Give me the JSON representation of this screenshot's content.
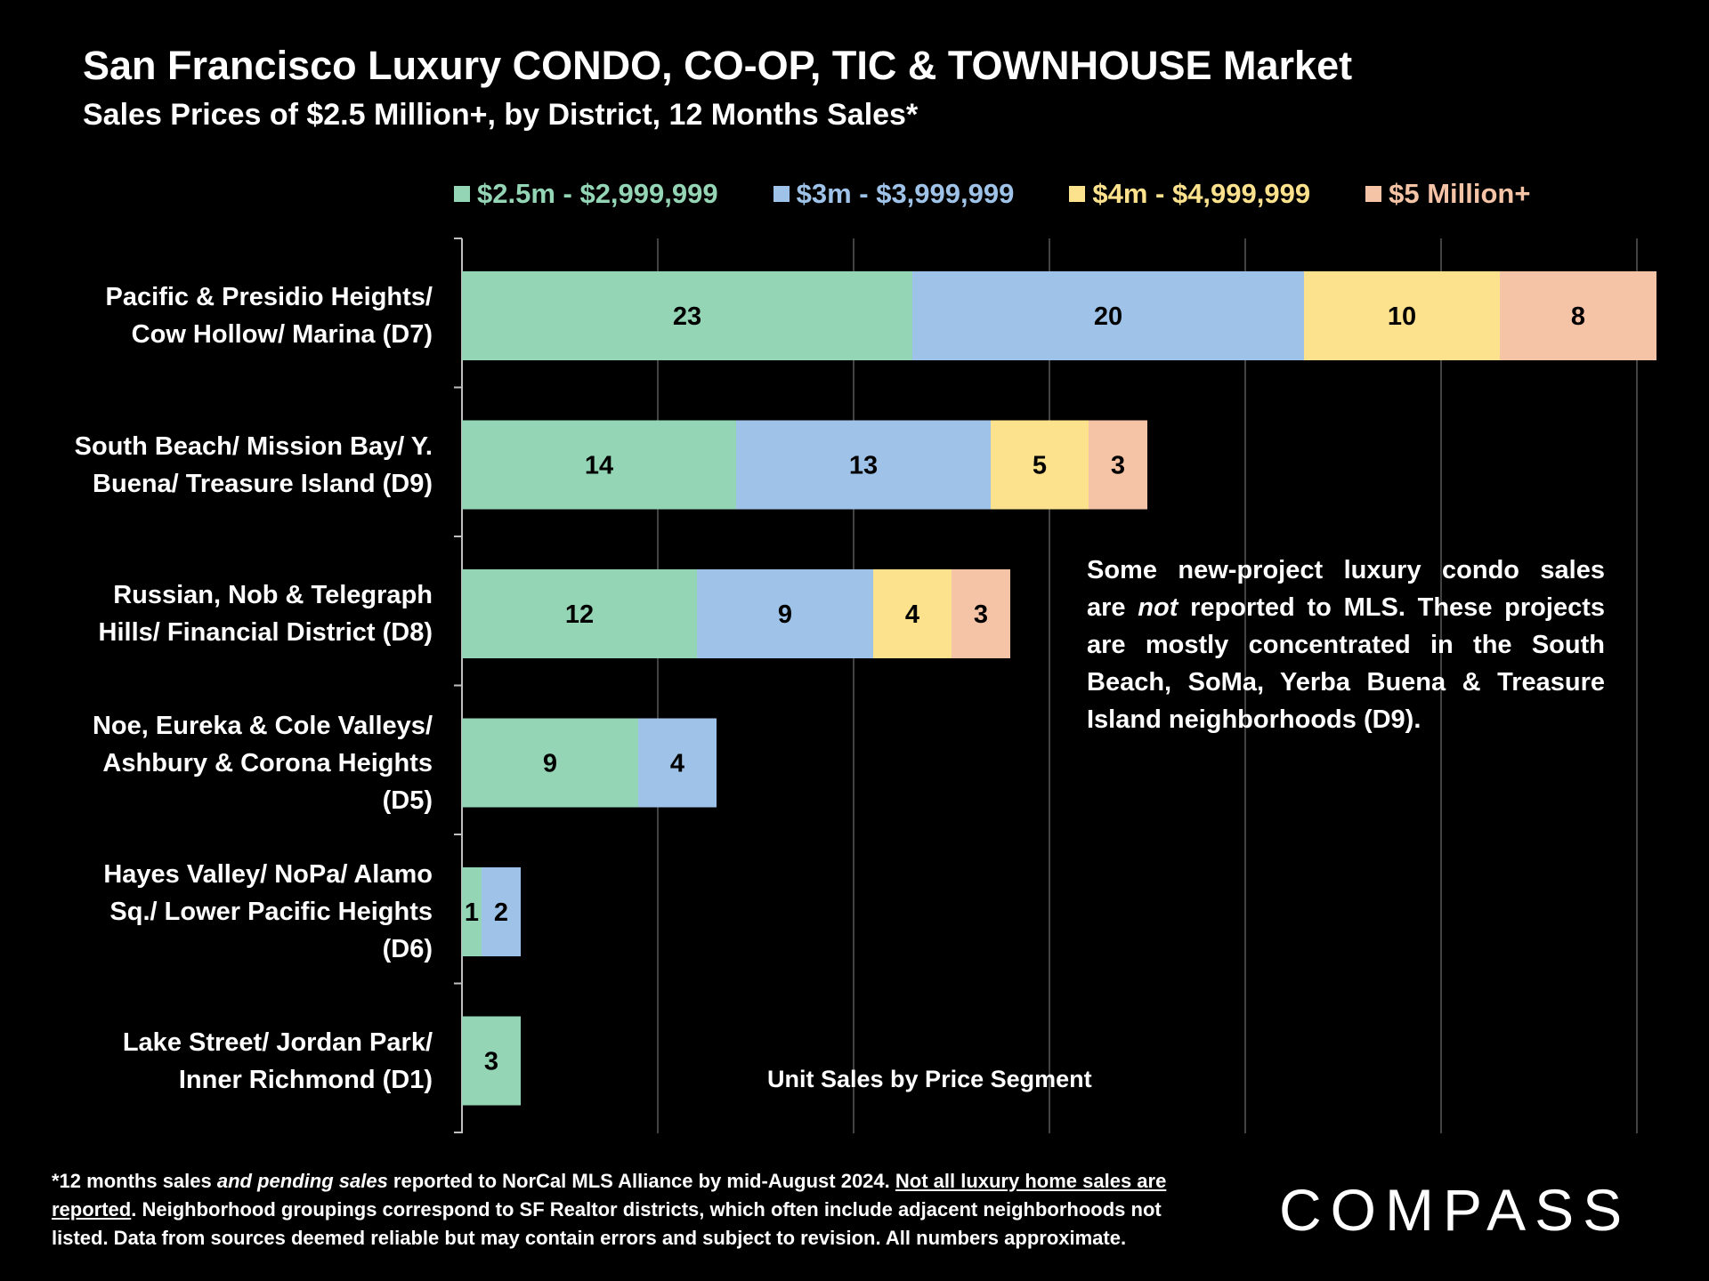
{
  "chart_data": {
    "type": "bar",
    "orientation": "horizontal",
    "stacked": true,
    "title": "San Francisco Luxury CONDO, CO-OP, TIC & TOWNHOUSE Market",
    "subtitle": "Sales Prices of $2.5 Million+, by District, 12 Months Sales*",
    "xlabel": "Unit Sales by Price Segment",
    "ylabel": "",
    "xlim": [
      0,
      60
    ],
    "grid": true,
    "legend_position": "top",
    "categories": [
      [
        "Pacific & Presidio Heights/",
        "Cow Hollow/ Marina (D7)"
      ],
      [
        "South Beach/ Mission Bay/ Y.",
        "Buena/ Treasure Island (D9)"
      ],
      [
        "Russian, Nob & Telegraph",
        "Hills/ Financial District (D8)"
      ],
      [
        "Noe, Eureka & Cole Valleys/",
        "Ashbury & Corona Heights",
        "(D5)"
      ],
      [
        "Hayes Valley/ NoPa/ Alamo",
        "Sq./ Lower Pacific Heights",
        "(D6)"
      ],
      [
        "Lake Street/ Jordan Park/",
        "Inner Richmond (D1)"
      ]
    ],
    "series": [
      {
        "name": "$2.5m - $2,999,999",
        "color": "#93d5b4",
        "values": [
          23,
          14,
          12,
          9,
          1,
          3
        ]
      },
      {
        "name": "$3m - $3,999,999",
        "color": "#9fc3e8",
        "values": [
          20,
          13,
          9,
          4,
          2,
          0
        ]
      },
      {
        "name": "$4m - $4,999,999",
        "color": "#fde28e",
        "values": [
          10,
          5,
          4,
          0,
          0,
          0
        ]
      },
      {
        "name": "$5 Million+",
        "color": "#f5c3a6",
        "values": [
          8,
          3,
          3,
          0,
          0,
          0
        ]
      }
    ],
    "legend_text_colors": [
      "#93d5b4",
      "#9fc3e8",
      "#fde28e",
      "#f5c3a6"
    ]
  },
  "note": {
    "lines": [
      {
        "parts": [
          {
            "t": "Some new-project luxury condo sales"
          }
        ]
      },
      {
        "parts": [
          {
            "t": "are "
          },
          {
            "t": "not",
            "i": true
          },
          {
            "t": " reported to MLS. These projects"
          }
        ]
      },
      {
        "parts": [
          {
            "t": "are mostly concentrated in the South"
          }
        ]
      },
      {
        "parts": [
          {
            "t": "Beach, SoMa, Yerba Buena & Treasure"
          }
        ]
      },
      {
        "parts": [
          {
            "t": "Island neighborhoods (D9)."
          }
        ]
      }
    ]
  },
  "footnote": {
    "lines": [
      [
        {
          "t": "*12 months sales "
        },
        {
          "t": "and pending sales",
          "i": true
        },
        {
          "t": " reported to NorCal MLS Alliance by mid-August 2024. "
        },
        {
          "t": "Not all luxury home sales are",
          "u": true
        }
      ],
      [
        {
          "t": "reported",
          "u": true
        },
        {
          "t": ". Neighborhood groupings correspond to SF Realtor districts, which often include adjacent neighborhoods not"
        }
      ],
      [
        {
          "t": "listed. Data from sources deemed reliable but may contain errors and subject to revision. All numbers approximate."
        }
      ]
    ]
  },
  "logo": {
    "text": "COMPASS"
  }
}
